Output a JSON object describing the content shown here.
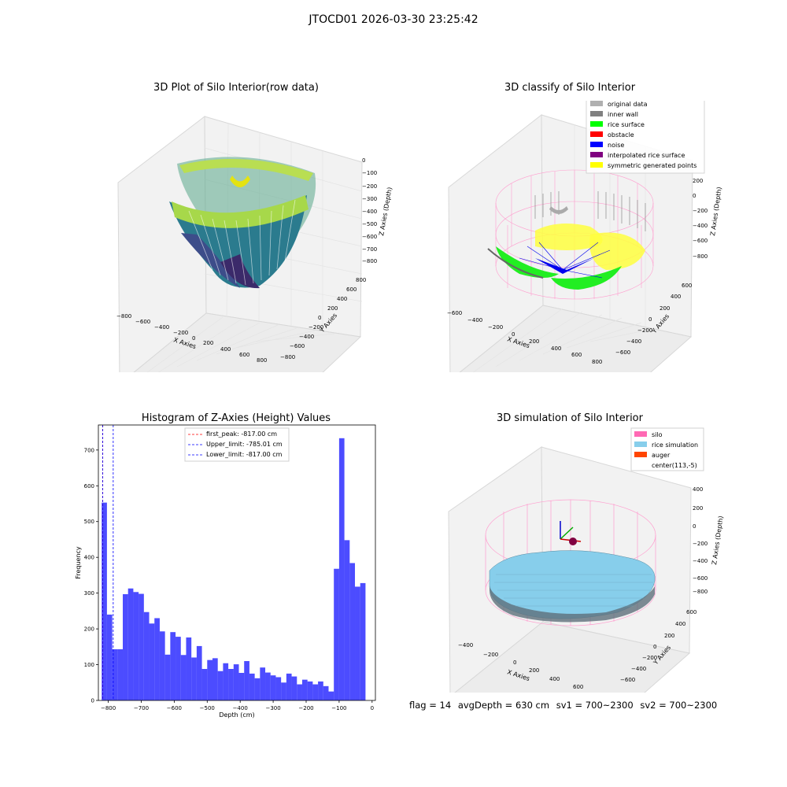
{
  "suptitle": "JTOCD01 2026-03-30 23:25:42",
  "panels": {
    "raw": {
      "title": "3D Plot of Silo Interior(row data)",
      "xlabel": "X Axies",
      "ylabel": "Y Axies",
      "zlabel": "Z Axies (Depth)",
      "xticks": [
        "−800",
        "−600",
        "−400",
        "−200",
        "0",
        "200",
        "400",
        "600",
        "800"
      ],
      "yticks": [
        "800",
        "600",
        "400",
        "200",
        "0",
        "−200",
        "−400",
        "−600",
        "−800"
      ],
      "zticks": [
        "0",
        "−100",
        "−200",
        "−300",
        "−400",
        "−500",
        "−600",
        "−700",
        "−800"
      ]
    },
    "classify": {
      "title": "3D classify of Silo Interior",
      "xlabel": "X Axies",
      "ylabel": "Y Axies",
      "zlabel": "Z Axies (Depth)",
      "xticks": [
        "−600",
        "−400",
        "−200",
        "0",
        "200",
        "400",
        "600",
        "800"
      ],
      "yticks": [
        "600",
        "400",
        "200",
        "0",
        "−200",
        "−400",
        "−600"
      ],
      "zticks": [
        "200",
        "0",
        "−200",
        "−400",
        "−600",
        "−800"
      ],
      "legend": [
        {
          "label": "original data",
          "color": "#b0b0b0"
        },
        {
          "label": "inner wall",
          "color": "#808080"
        },
        {
          "label": "rice surface",
          "color": "#00ff00"
        },
        {
          "label": "obstacle",
          "color": "#ff0000"
        },
        {
          "label": "noise",
          "color": "#0000ff"
        },
        {
          "label": "interpolated rice surface",
          "color": "#800080"
        },
        {
          "label": "symmetric generated points",
          "color": "#ffff00"
        }
      ]
    },
    "simulation": {
      "title": "3D simulation of Silo Interior",
      "xlabel": "X Axies",
      "ylabel": "Y Axies",
      "zlabel": "Z Axies (Depth)",
      "xticks": [
        "−400",
        "−200",
        "0",
        "200",
        "400",
        "600"
      ],
      "yticks": [
        "600",
        "400",
        "200",
        "0",
        "−200",
        "−400",
        "−600"
      ],
      "zticks": [
        "400",
        "200",
        "0",
        "−200",
        "−400",
        "−600",
        "−800"
      ],
      "legend": [
        {
          "label": "silo",
          "color": "#ff69b4"
        },
        {
          "label": "rice simulation",
          "color": "#87ceeb"
        },
        {
          "label": "auger",
          "color": "#ff4500"
        },
        {
          "label": "center(113,-5)",
          "color": ""
        }
      ]
    }
  },
  "footer": {
    "flag": "flag = 14",
    "avg": "avgDepth = 630 cm",
    "sv1": "sv1 = 700~2300",
    "sv2": "sv2 = 700~2300"
  },
  "chart_data": {
    "type": "bar",
    "title": "Histogram of Z-Axies (Height) Values",
    "xlabel": "Depth (cm)",
    "ylabel": "Frequency",
    "xlim": [
      -830,
      10
    ],
    "ylim": [
      0,
      770
    ],
    "xticks": [
      -800,
      -700,
      -600,
      -500,
      -400,
      -300,
      -200,
      -100,
      0
    ],
    "yticks": [
      0,
      100,
      200,
      300,
      400,
      500,
      600,
      700
    ],
    "bin_start": -820,
    "bin_width": 16,
    "values": [
      553,
      240,
      143,
      143,
      297,
      313,
      303,
      298,
      247,
      215,
      230,
      193,
      128,
      191,
      178,
      127,
      176,
      120,
      152,
      88,
      113,
      118,
      82,
      104,
      88,
      101,
      77,
      110,
      75,
      62,
      92,
      78,
      70,
      65,
      50,
      75,
      67,
      45,
      58,
      53,
      45,
      53,
      40,
      25,
      368,
      733,
      448,
      384,
      318,
      328
    ],
    "bar_color": "#0000ff",
    "vlines": [
      {
        "label": "first_peak: -817.00 cm",
        "x": -817,
        "color": "#ff0000"
      },
      {
        "label": "Upper_limit: -785.01 cm",
        "x": -785.01,
        "color": "#0000ff"
      },
      {
        "label": "Lower_limit: -817.00 cm",
        "x": -817,
        "color": "#0000ff"
      }
    ]
  }
}
